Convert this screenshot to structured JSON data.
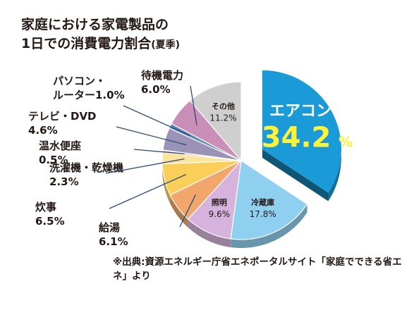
{
  "title": {
    "line1": "家庭における家電製品の",
    "line2": "1日での消費電力割合",
    "line2_suffix": "(夏季)"
  },
  "source": "※出典:資源エネルギー庁省エネポータルサイト「家庭でできる省エネ」より",
  "chart_data": {
    "type": "pie",
    "title": "家庭における家電製品の1日での消費電力割合(夏季)",
    "unit": "%",
    "slices": [
      {
        "label": "エアコン",
        "value": 34.2,
        "color": "#1a9ad6",
        "text_color": "#ffffff",
        "value_color": "#fff23a",
        "exploded": true
      },
      {
        "label": "冷蔵庫",
        "value": 17.8,
        "color": "#8fd0f0",
        "text_color": "#231815"
      },
      {
        "label": "照明",
        "value": 9.6,
        "color": "#d5b3dc",
        "text_color": "#231815"
      },
      {
        "label": "給湯",
        "value": 6.1,
        "color": "#f1a66c",
        "text_color": "#231815"
      },
      {
        "label": "炊事",
        "value": 6.5,
        "color": "#f9cf5a",
        "text_color": "#231815"
      },
      {
        "label": "洗濯機・乾燥機",
        "value": 2.3,
        "color": "#fbe49b",
        "text_color": "#231815"
      },
      {
        "label": "温水便座",
        "value": 0.5,
        "color": "#f3b9c6",
        "text_color": "#231815"
      },
      {
        "label": "テレビ・DVD",
        "value": 4.6,
        "color": "#9a93b7",
        "text_color": "#231815"
      },
      {
        "label": "パソコン・ルーター",
        "value": 1.0,
        "color": "#5b84b8",
        "text_color": "#231815"
      },
      {
        "label": "待機電力",
        "value": 6.0,
        "color": "#c98fb8",
        "text_color": "#231815"
      },
      {
        "label": "その他",
        "value": 11.2,
        "color": "#cfcfcf",
        "text_color": "#231815"
      }
    ],
    "callouts": [
      {
        "label_lines": [
          "待機電力",
          "6.0%"
        ]
      },
      {
        "label_lines": [
          "パソコン・",
          "ルーター1.0%"
        ]
      },
      {
        "label_lines": [
          "テレビ・DVD",
          "4.6%"
        ]
      },
      {
        "label_lines": [
          "温水便座",
          "0.5%"
        ]
      },
      {
        "label_lines": [
          "洗濯機・乾燥機",
          "2.3%"
        ]
      },
      {
        "label_lines": [
          "炊事",
          "6.5%"
        ]
      },
      {
        "label_lines": [
          "給湯",
          "6.1%"
        ]
      }
    ],
    "inside_labels": [
      {
        "label": "エアコン",
        "value_text": "34.2",
        "unit": "%"
      },
      {
        "label": "冷蔵庫",
        "value_text": "17.8%"
      },
      {
        "label": "照明",
        "value_text": "9.6%"
      },
      {
        "label": "その他",
        "value_text": "11.2%"
      }
    ]
  }
}
